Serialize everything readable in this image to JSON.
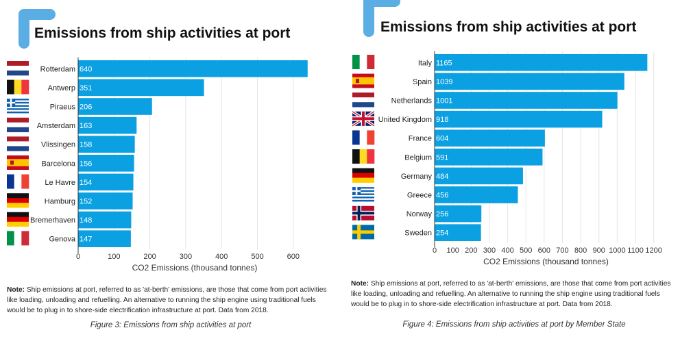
{
  "chart_data": [
    {
      "type": "bar",
      "orientation": "horizontal",
      "title": "Emissions from ship activities at port",
      "xlabel": "CO2 Emissions (thousand tonnes)",
      "ylabel": "",
      "xlim": [
        0,
        650
      ],
      "xticks": [
        0,
        100,
        200,
        300,
        400,
        500,
        600
      ],
      "grid": true,
      "bar_color": "#0aa0e2",
      "categories": [
        "Rotterdam",
        "Antwerp",
        "Piraeus",
        "Amsterdam",
        "Vlissingen",
        "Barcelona",
        "Le Havre",
        "Hamburg",
        "Bremerhaven",
        "Genova"
      ],
      "flags": [
        "NL",
        "BE",
        "GR",
        "NL",
        "NL",
        "ES",
        "FR",
        "DE",
        "DE",
        "IT"
      ],
      "values": [
        640,
        351,
        206,
        163,
        158,
        156,
        154,
        152,
        148,
        147
      ],
      "note_label": "Note:",
      "note_text": " Ship emissions at port, referred to as 'at-berth' emissions, are  those that come from port activities like loading, unloading and refuelling. An alternative to running the ship engine using traditional fuels would be to plug in to shore-side electrification infrastructure at port. Data from 2018.",
      "caption": "Figure 3: Emissions from ship activities at port"
    },
    {
      "type": "bar",
      "orientation": "horizontal",
      "title": "Emissions from ship activities at port",
      "xlabel": "CO2 Emissions (thousand tonnes)",
      "ylabel": "",
      "xlim": [
        0,
        1220
      ],
      "xticks": [
        0,
        100,
        200,
        300,
        400,
        500,
        600,
        700,
        800,
        900,
        1000,
        1100,
        1200
      ],
      "grid": true,
      "bar_color": "#0aa0e2",
      "categories": [
        "Italy",
        "Spain",
        "Netherlands",
        "United Kingdom",
        "France",
        "Belgium",
        "Germany",
        "Greece",
        "Norway",
        "Sweden"
      ],
      "flags": [
        "IT",
        "ES",
        "NL",
        "GB",
        "FR",
        "BE",
        "DE",
        "GR",
        "NO",
        "SE"
      ],
      "values": [
        1165,
        1039,
        1001,
        918,
        604,
        591,
        484,
        456,
        256,
        254
      ],
      "note_label": "Note:",
      "note_text": " Ship emissions at port, referred to as 'at-berth' emissions, are  those that come from port activities like loading, unloading and refuelling. An alternative to running the ship engine using traditional fuels would be to plug in to shore-side electrification infrastructure at port. Data from 2018.",
      "caption": "Figure 4: Emissions from ship activities at port by Member State"
    }
  ]
}
